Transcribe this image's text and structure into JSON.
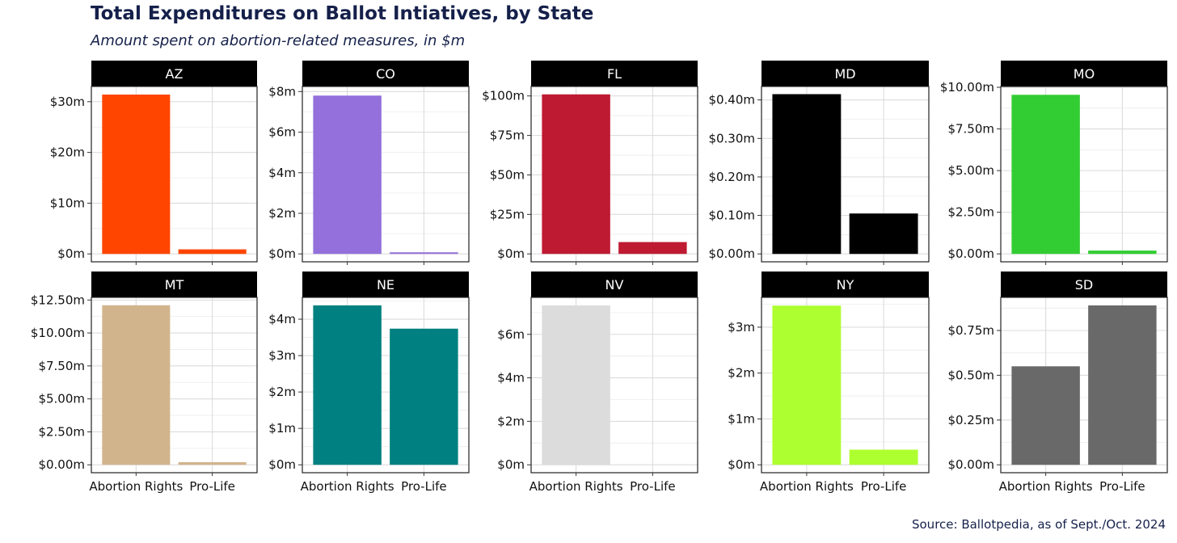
{
  "header": {
    "title": "Total Expenditures on Ballot Intiatives, by State",
    "subtitle": "Amount spent on abortion-related measures, in $m"
  },
  "footer": {
    "source": "Source: Ballotpedia, as of Sept./Oct. 2024"
  },
  "colors": {
    "strip_bg": "#000000",
    "strip_text": "#ffffff",
    "grid": "#dcdcdc",
    "panel_border": "#222222"
  },
  "chart_data": {
    "type": "bar",
    "layout": "facet-grid",
    "categories": [
      "Abortion Rights",
      "Pro-Life"
    ],
    "panels": [
      {
        "state": "AZ",
        "color": "#ff4500",
        "values": [
          31.4,
          0.9
        ],
        "ylim": [
          0,
          33
        ],
        "ticks": [
          0,
          10,
          20,
          30
        ],
        "tick_labels": [
          "$0m",
          "$10m",
          "$20m",
          "$30m"
        ]
      },
      {
        "state": "CO",
        "color": "#9370db",
        "values": [
          7.8,
          0.08
        ],
        "ylim": [
          0,
          8.25
        ],
        "ticks": [
          0,
          2,
          4,
          6,
          8
        ],
        "tick_labels": [
          "$0m",
          "$2m",
          "$4m",
          "$6m",
          "$8m"
        ]
      },
      {
        "state": "FL",
        "color": "#be1b32",
        "values": [
          101,
          7.5
        ],
        "ylim": [
          0,
          106
        ],
        "ticks": [
          0,
          25,
          50,
          75,
          100
        ],
        "tick_labels": [
          "$0m",
          "$25m",
          "$50m",
          "$75m",
          "$100m"
        ]
      },
      {
        "state": "MD",
        "color": "#000000",
        "values": [
          0.415,
          0.105
        ],
        "ylim": [
          0,
          0.435
        ],
        "ticks": [
          0,
          0.1,
          0.2,
          0.3,
          0.4
        ],
        "tick_labels": [
          "$0.00m",
          "$0.10m",
          "$0.20m",
          "$0.30m",
          "$0.40m"
        ]
      },
      {
        "state": "MO",
        "color": "#32cd32",
        "values": [
          9.55,
          0.2
        ],
        "ylim": [
          0,
          10.05
        ],
        "ticks": [
          0,
          2.5,
          5,
          7.5,
          10
        ],
        "tick_labels": [
          "$0.00m",
          "$2.50m",
          "$5.00m",
          "$7.50m",
          "$10.00m"
        ]
      },
      {
        "state": "MT",
        "color": "#d2b48c",
        "values": [
          12.1,
          0.2
        ],
        "ylim": [
          0,
          12.7
        ],
        "ticks": [
          0,
          2.5,
          5,
          7.5,
          10,
          12.5
        ],
        "tick_labels": [
          "$0.00m",
          "$2.50m",
          "$5.00m",
          "$7.50m",
          "$10.00m",
          "$12.50m"
        ]
      },
      {
        "state": "NE",
        "color": "#008080",
        "values": [
          4.38,
          3.74
        ],
        "ylim": [
          0,
          4.6
        ],
        "ticks": [
          0,
          1,
          2,
          3,
          4
        ],
        "tick_labels": [
          "$0m",
          "$1m",
          "$2m",
          "$3m",
          "$4m"
        ]
      },
      {
        "state": "NV",
        "color": "#dcdcdc",
        "values": [
          7.33,
          0
        ],
        "ylim": [
          0,
          7.7
        ],
        "ticks": [
          0,
          2,
          4,
          6
        ],
        "tick_labels": [
          "$0m",
          "$2m",
          "$4m",
          "$6m"
        ]
      },
      {
        "state": "NY",
        "color": "#adff2f",
        "values": [
          3.47,
          0.33
        ],
        "ylim": [
          0,
          3.65
        ],
        "ticks": [
          0,
          1,
          2,
          3
        ],
        "tick_labels": [
          "$0m",
          "$1m",
          "$2m",
          "$3m"
        ]
      },
      {
        "state": "SD",
        "color": "#696969",
        "values": [
          0.55,
          0.89
        ],
        "ylim": [
          0,
          0.935
        ],
        "ticks": [
          0,
          0.25,
          0.5,
          0.75
        ],
        "tick_labels": [
          "$0.00m",
          "$0.25m",
          "$0.50m",
          "$0.75m"
        ]
      }
    ]
  }
}
